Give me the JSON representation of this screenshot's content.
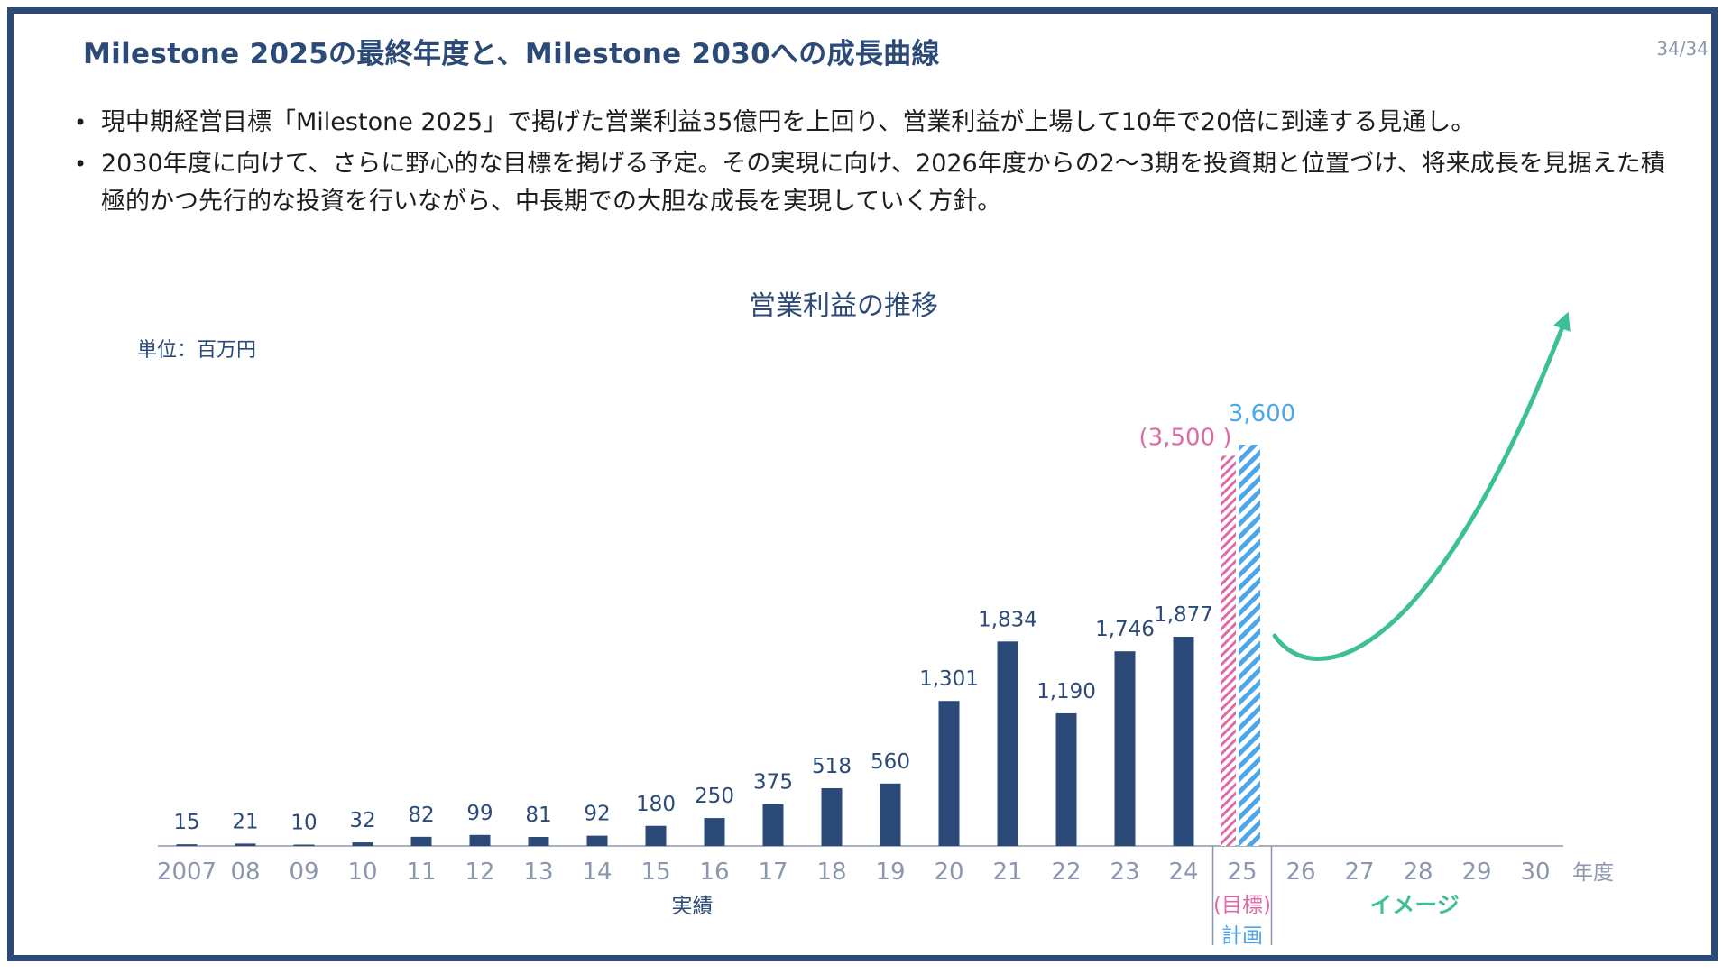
{
  "slide": {
    "title": "Milestone 2025の最終年度と、Milestone 2030への成長曲線",
    "page_number": "34/34",
    "bullets": [
      "現中期経営目標「Milestone 2025」で掲げた営業利益35億円を上回り、営業利益が上場して10年で20倍に到達する見通し。",
      "2030年度に向けて、さらに野心的な目標を掲げる予定。その実現に向け、2026年度からの2〜3期を投資期と位置づけ、将来成長を見据えた積極的かつ先行的な投資を行いながら、中長期での大胆な成長を実現していく方針。"
    ]
  },
  "chart_data": {
    "type": "bar",
    "title": "営業利益の推移",
    "unit_label": "単位：百万円",
    "xlabel": "年度",
    "categories": [
      "2007",
      "08",
      "09",
      "10",
      "11",
      "12",
      "13",
      "14",
      "15",
      "16",
      "17",
      "18",
      "19",
      "20",
      "21",
      "22",
      "23",
      "24",
      "25",
      "26",
      "27",
      "28",
      "29",
      "30"
    ],
    "series": [
      {
        "values": [
          15,
          21,
          10,
          32,
          82,
          99,
          81,
          92,
          180,
          250,
          375,
          518,
          560,
          1301,
          1834,
          1190,
          1746,
          1877,
          null,
          null,
          null,
          null,
          null,
          null
        ],
        "labels": [
          "15",
          "21",
          "10",
          "32",
          "82",
          "99",
          "81",
          "92",
          "180",
          "250",
          "375",
          "518",
          "560",
          "1,301",
          "1,834",
          "1,190",
          "1,746",
          "1,877",
          "",
          "",
          "",
          "",
          "",
          ""
        ]
      }
    ],
    "target": {
      "category": "25",
      "value": 3500,
      "label": "(3,500 )",
      "color": "#e06aa5"
    },
    "plan": {
      "category": "25",
      "value": 3600,
      "label": "3,600",
      "color": "#4da6e8"
    },
    "ylim": [
      0,
      3600
    ],
    "bar_color": "#2c4a78",
    "image_arrow_color": "#3dbf97",
    "group_labels": {
      "actual": "実績",
      "target": "(目標)",
      "plan": "計画",
      "image": "イメージ"
    }
  }
}
